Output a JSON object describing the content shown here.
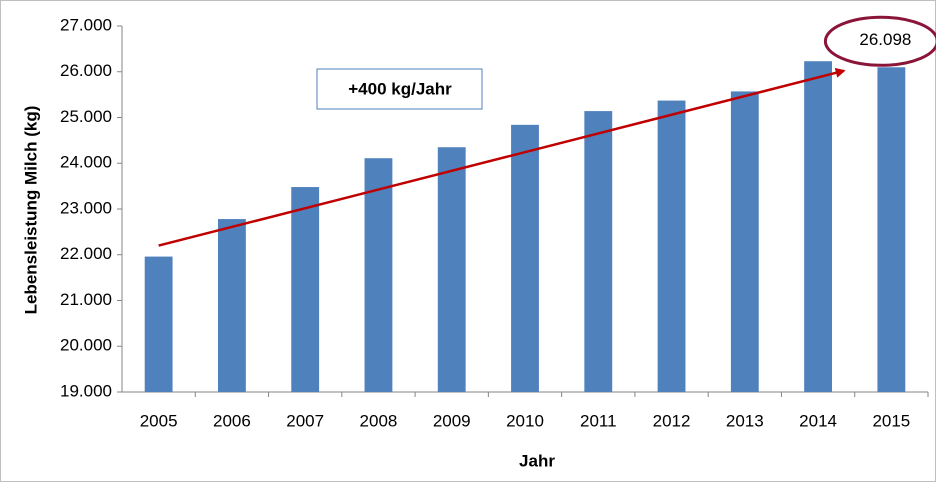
{
  "chart_data": {
    "type": "bar",
    "x_label": "Jahr",
    "y_label": "Lebensleistung Milch (kg)",
    "categories": [
      "2005",
      "2006",
      "2007",
      "2008",
      "2009",
      "2010",
      "2011",
      "2012",
      "2013",
      "2014",
      "2015"
    ],
    "values": [
      21960,
      22780,
      23480,
      24110,
      24350,
      24840,
      25140,
      25370,
      25570,
      26230,
      26098
    ],
    "value_labels": [
      null,
      null,
      null,
      null,
      null,
      null,
      null,
      null,
      null,
      null,
      "26.098"
    ],
    "color": "#4f81bd",
    "ylim": [
      19000,
      27000
    ],
    "yticks": [
      {
        "value": 19000,
        "label": "19.000"
      },
      {
        "value": 20000,
        "label": "20.000"
      },
      {
        "value": 21000,
        "label": "21.000"
      },
      {
        "value": 22000,
        "label": "22.000"
      },
      {
        "value": 23000,
        "label": "23.000"
      },
      {
        "value": 24000,
        "label": "24.000"
      },
      {
        "value": 25000,
        "label": "25.000"
      },
      {
        "value": 26000,
        "label": "26.000"
      },
      {
        "value": 27000,
        "label": "27.000"
      }
    ],
    "trendline": {
      "label": "+400 kg/Jahr",
      "values": [
        22200,
        26020
      ],
      "color": "#c00000"
    },
    "highlight_color": "#8b1538"
  }
}
